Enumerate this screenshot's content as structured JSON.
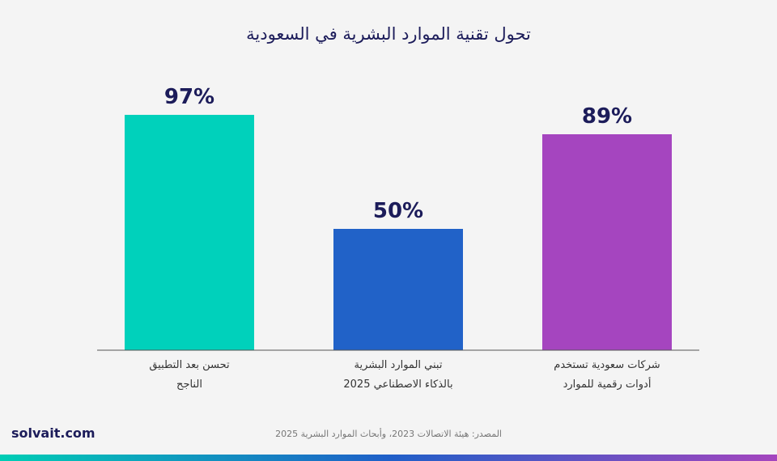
{
  "chart_data": {
    "type": "bar",
    "title": "تحول تقنية الموارد البشرية في السعودية",
    "categories": [
      [
        "تحسن بعد التطبيق",
        "الناجح"
      ],
      [
        "تبني الموارد البشرية",
        "بالذكاء الاصطناعي 2025"
      ],
      [
        "شركات سعودية تستخدم",
        "أدوات رقمية للموارد"
      ]
    ],
    "values": [
      97,
      50,
      89
    ],
    "value_labels": [
      "97%",
      "50%",
      "89%"
    ],
    "colors": [
      "#00d1bb",
      "#2162c8",
      "#a545bf"
    ],
    "ylim": [
      0,
      100
    ],
    "grid": false,
    "legend": "none"
  },
  "brand": "solvait.com",
  "source": "المصدر: هيئة الاتصالات 2023، وأبحاث الموارد البشرية 2025"
}
